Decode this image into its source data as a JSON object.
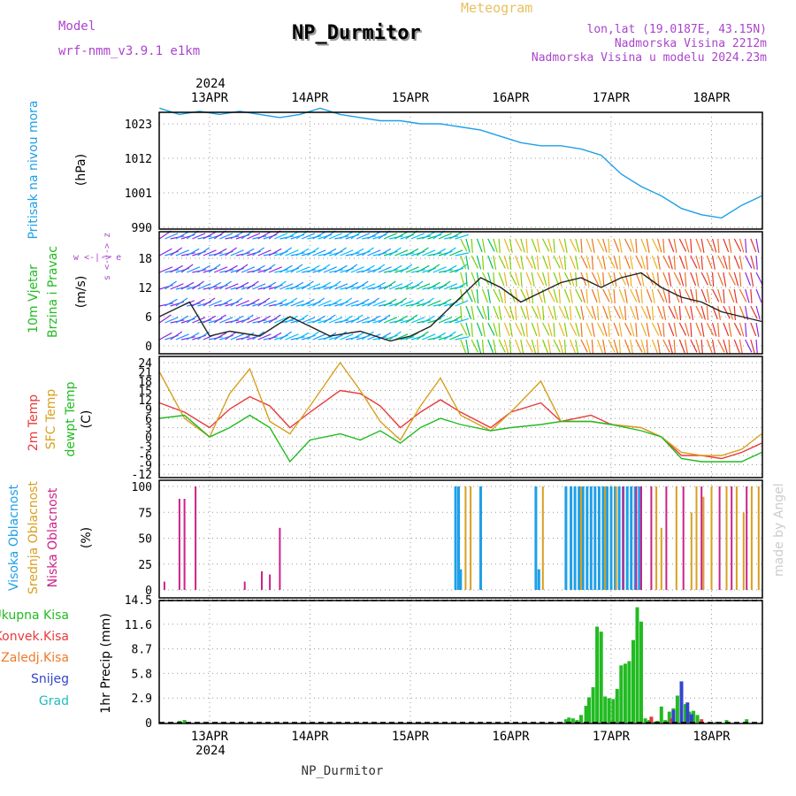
{
  "header": {
    "model_label": "Model",
    "model_value": "wrf-nmm_v3.9.1  e1km",
    "title": "NP_Durmitor",
    "meteogram_label": "Meteogram",
    "lonlat": "lon,lat (19.0187E, 43.15N)",
    "altitude": "Nadmorska Visina 2212m",
    "model_altitude": "Nadmorska Visina u modelu 2024.23m",
    "watermark": "made by Angel",
    "footer": "NP_Durmitor"
  },
  "colors": {
    "pressure": "#1ea0e6",
    "wind_label": "#22bb22",
    "wind_side": "#aa44cc",
    "temp2m": "#e83a3a",
    "sfc": "#d8a020",
    "dew": "#22bb22",
    "high_cloud": "#1ea0e6",
    "mid_cloud": "#d8a020",
    "low_cloud": "#cc2288",
    "precip_total": "#22bb22",
    "precip_conv": "#e83a3a",
    "precip_freeze": "#f07a2a",
    "precip_snow": "#3344cc",
    "precip_grad": "#22bbbb"
  },
  "time_axis": {
    "year": "2024",
    "days": [
      "13APR",
      "14APR",
      "15APR",
      "16APR",
      "17APR",
      "18APR"
    ]
  },
  "panels": {
    "pressure": {
      "side_label": "Pritisak na nivou mora",
      "unit": "(hPa)",
      "ticks": [
        "1023",
        "1012",
        "1001",
        "990"
      ]
    },
    "wind": {
      "side_label1": "10m Vjetar",
      "side_label2": "Brzina i Pravac",
      "unit": "(m/s)",
      "ticks": [
        "18",
        "12",
        "6",
        "0"
      ],
      "dir_n": "w <-|-> e",
      "dir_s": "s <-|-> z"
    },
    "temp": {
      "label_2m": "2m Temp",
      "label_sfc": "SFC Temp",
      "label_dew": "dewpt Temp",
      "unit": "(C)",
      "ticks": [
        "24",
        "21",
        "18",
        "15",
        "12",
        "9",
        "6",
        "3",
        "0",
        "-3",
        "-6",
        "-9",
        "-12"
      ]
    },
    "cloud": {
      "label_high": "Visoka Oblacnost",
      "label_mid": "Srednja Oblacnost",
      "label_low": "Niska Oblacnost",
      "unit": "(%)",
      "ticks": [
        "100",
        "75",
        "50",
        "25",
        "0"
      ]
    },
    "precip": {
      "label_total": "Ukupna Kisa",
      "label_conv": "Konvek.Kisa",
      "label_freeze": "Zaledj.Kisa",
      "label_snow": "Snijeg",
      "label_grad": "Grad",
      "unit": "1hr Precip (mm)",
      "ticks": [
        "14.5",
        "11.6",
        "8.7",
        "5.8",
        "2.9",
        "0"
      ]
    }
  },
  "chart_data": [
    {
      "type": "line",
      "x_unit": "days from 2024-04-12 12:00",
      "xlim": [
        0,
        6
      ],
      "ylim": [
        990,
        1030
      ],
      "series": [
        {
          "x": [
            0,
            0.2,
            0.4,
            0.6,
            0.8,
            1.0,
            1.2,
            1.4,
            1.6,
            1.8,
            2.0,
            2.2,
            2.4,
            2.6,
            2.8,
            3.0,
            3.2,
            3.4,
            3.6,
            3.8,
            4.0,
            4.2,
            4.4,
            4.5,
            4.6,
            4.8,
            5.0,
            5.2,
            5.4,
            5.6,
            5.8,
            6.0
          ],
          "y": [
            1028,
            1026,
            1027,
            1026,
            1027,
            1026,
            1025,
            1026,
            1028,
            1026,
            1025,
            1024,
            1024,
            1023,
            1023,
            1022,
            1021,
            1019,
            1017,
            1016,
            1016,
            1015,
            1013,
            1010,
            1007,
            1003,
            1000,
            996,
            994,
            993,
            997,
            1000
          ]
        }
      ]
    },
    {
      "type": "line",
      "x_unit": "days from 2024-04-12 12:00",
      "xlim": [
        0,
        6
      ],
      "ylim": [
        0,
        20
      ],
      "series": [
        {
          "x": [
            0,
            0.3,
            0.5,
            0.7,
            1.0,
            1.3,
            1.5,
            1.7,
            2.0,
            2.3,
            2.5,
            2.7,
            3.0,
            3.2,
            3.4,
            3.6,
            3.8,
            4.0,
            4.2,
            4.4,
            4.6,
            4.8,
            5.0,
            5.2,
            5.4,
            5.6,
            5.8,
            6.0
          ],
          "y": [
            6,
            9,
            2,
            3,
            2,
            6,
            4,
            2,
            3,
            1,
            2,
            4,
            10,
            14,
            12,
            9,
            11,
            13,
            14,
            12,
            14,
            15,
            12,
            10,
            9,
            7,
            6,
            5
          ]
        }
      ]
    },
    {
      "type": "line",
      "x_unit": "days from 2024-04-12 12:00",
      "xlim": [
        0,
        6
      ],
      "ylim": [
        -12,
        25
      ],
      "series": [
        {
          "name": "2m Temp",
          "x": [
            0,
            0.25,
            0.5,
            0.7,
            0.9,
            1.1,
            1.3,
            1.5,
            1.8,
            2.0,
            2.2,
            2.4,
            2.6,
            2.8,
            3.0,
            3.3,
            3.5,
            3.8,
            4.0,
            4.3,
            4.5,
            4.8,
            5.0,
            5.2,
            5.4,
            5.6,
            5.8,
            6.0
          ],
          "y": [
            11,
            8,
            3,
            9,
            13,
            10,
            3,
            8,
            15,
            14,
            10,
            3,
            8,
            12,
            8,
            3,
            8,
            11,
            5,
            7,
            4,
            3,
            0,
            -6,
            -6,
            -7,
            -5,
            -2
          ]
        },
        {
          "name": "SFC Temp",
          "x": [
            0,
            0.25,
            0.5,
            0.7,
            0.9,
            1.1,
            1.3,
            1.5,
            1.8,
            2.0,
            2.2,
            2.4,
            2.6,
            2.8,
            3.0,
            3.3,
            3.5,
            3.8,
            4.0,
            4.3,
            4.5,
            4.8,
            5.0,
            5.2,
            5.4,
            5.6,
            5.8,
            6.0
          ],
          "y": [
            21,
            6,
            0,
            14,
            22,
            5,
            1,
            10,
            24,
            15,
            5,
            -1,
            10,
            19,
            7,
            2,
            8,
            18,
            5,
            5,
            4,
            3,
            0,
            -5,
            -6,
            -6,
            -4,
            1
          ]
        },
        {
          "name": "dewpt Temp",
          "x": [
            0,
            0.25,
            0.5,
            0.7,
            0.9,
            1.1,
            1.3,
            1.5,
            1.8,
            2.0,
            2.2,
            2.4,
            2.6,
            2.8,
            3.0,
            3.3,
            3.5,
            3.8,
            4.0,
            4.3,
            4.5,
            4.8,
            5.0,
            5.2,
            5.4,
            5.6,
            5.8,
            6.0
          ],
          "y": [
            6,
            7,
            0,
            3,
            7,
            3,
            -8,
            -1,
            1,
            -1,
            2,
            -2,
            3,
            6,
            4,
            2,
            3,
            4,
            5,
            5,
            4,
            2,
            0,
            -7,
            -8,
            -8,
            -8,
            -5
          ]
        }
      ]
    },
    {
      "type": "bar",
      "x_unit": "days from 2024-04-12 12:00",
      "xlim": [
        0,
        6
      ],
      "ylim": [
        0,
        100
      ],
      "series": [
        {
          "name": "Visoka Oblacnost",
          "x": [
            2.95,
            2.98,
            3.0,
            3.2,
            3.75,
            3.78,
            4.05,
            4.1,
            4.14,
            4.18,
            4.22,
            4.26,
            4.3,
            4.34,
            4.38,
            4.42,
            4.46,
            4.5,
            4.54,
            4.58,
            4.62,
            4.66,
            4.7,
            4.74,
            4.78
          ],
          "y": [
            100,
            100,
            20,
            100,
            100,
            20,
            100,
            100,
            100,
            100,
            100,
            100,
            100,
            100,
            100,
            100,
            100,
            100,
            100,
            100,
            100,
            100,
            100,
            100,
            100
          ]
        },
        {
          "name": "Srednja Oblacnost",
          "x": [
            3.05,
            3.1,
            3.82,
            4.2,
            4.44,
            4.55,
            4.95,
            5.0,
            5.15,
            5.3,
            5.35,
            5.42,
            5.5,
            5.65,
            5.75,
            5.82,
            5.9,
            5.97
          ],
          "y": [
            100,
            100,
            100,
            100,
            100,
            100,
            100,
            60,
            100,
            75,
            100,
            90,
            100,
            100,
            100,
            75,
            100,
            100
          ]
        },
        {
          "name": "Niska Oblacnost",
          "x": [
            0.05,
            0.2,
            0.25,
            0.36,
            0.85,
            1.02,
            1.1,
            1.2,
            4.62,
            4.75,
            4.8,
            4.9,
            5.05,
            5.22,
            5.4,
            5.58,
            5.7,
            5.85
          ],
          "y": [
            8,
            88,
            88,
            100,
            8,
            18,
            15,
            60,
            100,
            100,
            100,
            100,
            100,
            100,
            100,
            100,
            100,
            100
          ]
        }
      ]
    },
    {
      "type": "bar",
      "x_unit": "days from 2024-04-12 12:00",
      "xlim": [
        0,
        6
      ],
      "ylim": [
        0,
        14.5
      ],
      "series": [
        {
          "name": "Ukupna Kisa",
          "x": [
            0.2,
            0.25,
            4.05,
            4.08,
            4.12,
            4.16,
            4.2,
            4.25,
            4.28,
            4.32,
            4.36,
            4.4,
            4.44,
            4.48,
            4.52,
            4.56,
            4.6,
            4.64,
            4.68,
            4.72,
            4.76,
            4.8,
            4.84,
            4.88,
            4.92,
            4.96,
            5.0,
            5.04,
            5.08,
            5.12,
            5.16,
            5.2,
            5.24,
            5.28,
            5.32,
            5.36,
            5.55,
            5.65,
            5.85
          ],
          "y": [
            0.2,
            0.3,
            0.4,
            0.6,
            0.5,
            0.3,
            0.9,
            2.0,
            3.0,
            4.2,
            11.4,
            10.8,
            3.1,
            2.9,
            2.8,
            4.0,
            6.8,
            7.0,
            7.3,
            9.8,
            13.7,
            12.0,
            0.5,
            0.3,
            0.1,
            0.2,
            1.9,
            0.3,
            1.3,
            1.7,
            3.2,
            3.0,
            2.2,
            1.3,
            1.4,
            0.9,
            0.1,
            0.3,
            0.4
          ]
        },
        {
          "name": "Konvek.Kisa",
          "x": [
            4.9,
            5.1,
            5.3,
            5.4
          ],
          "y": [
            0.7,
            0.5,
            0.3,
            0.4
          ]
        },
        {
          "name": "Snijeg",
          "x": [
            5.12,
            5.2,
            5.26,
            5.3
          ],
          "y": [
            1.5,
            4.9,
            2.4,
            1.0
          ]
        }
      ]
    }
  ]
}
